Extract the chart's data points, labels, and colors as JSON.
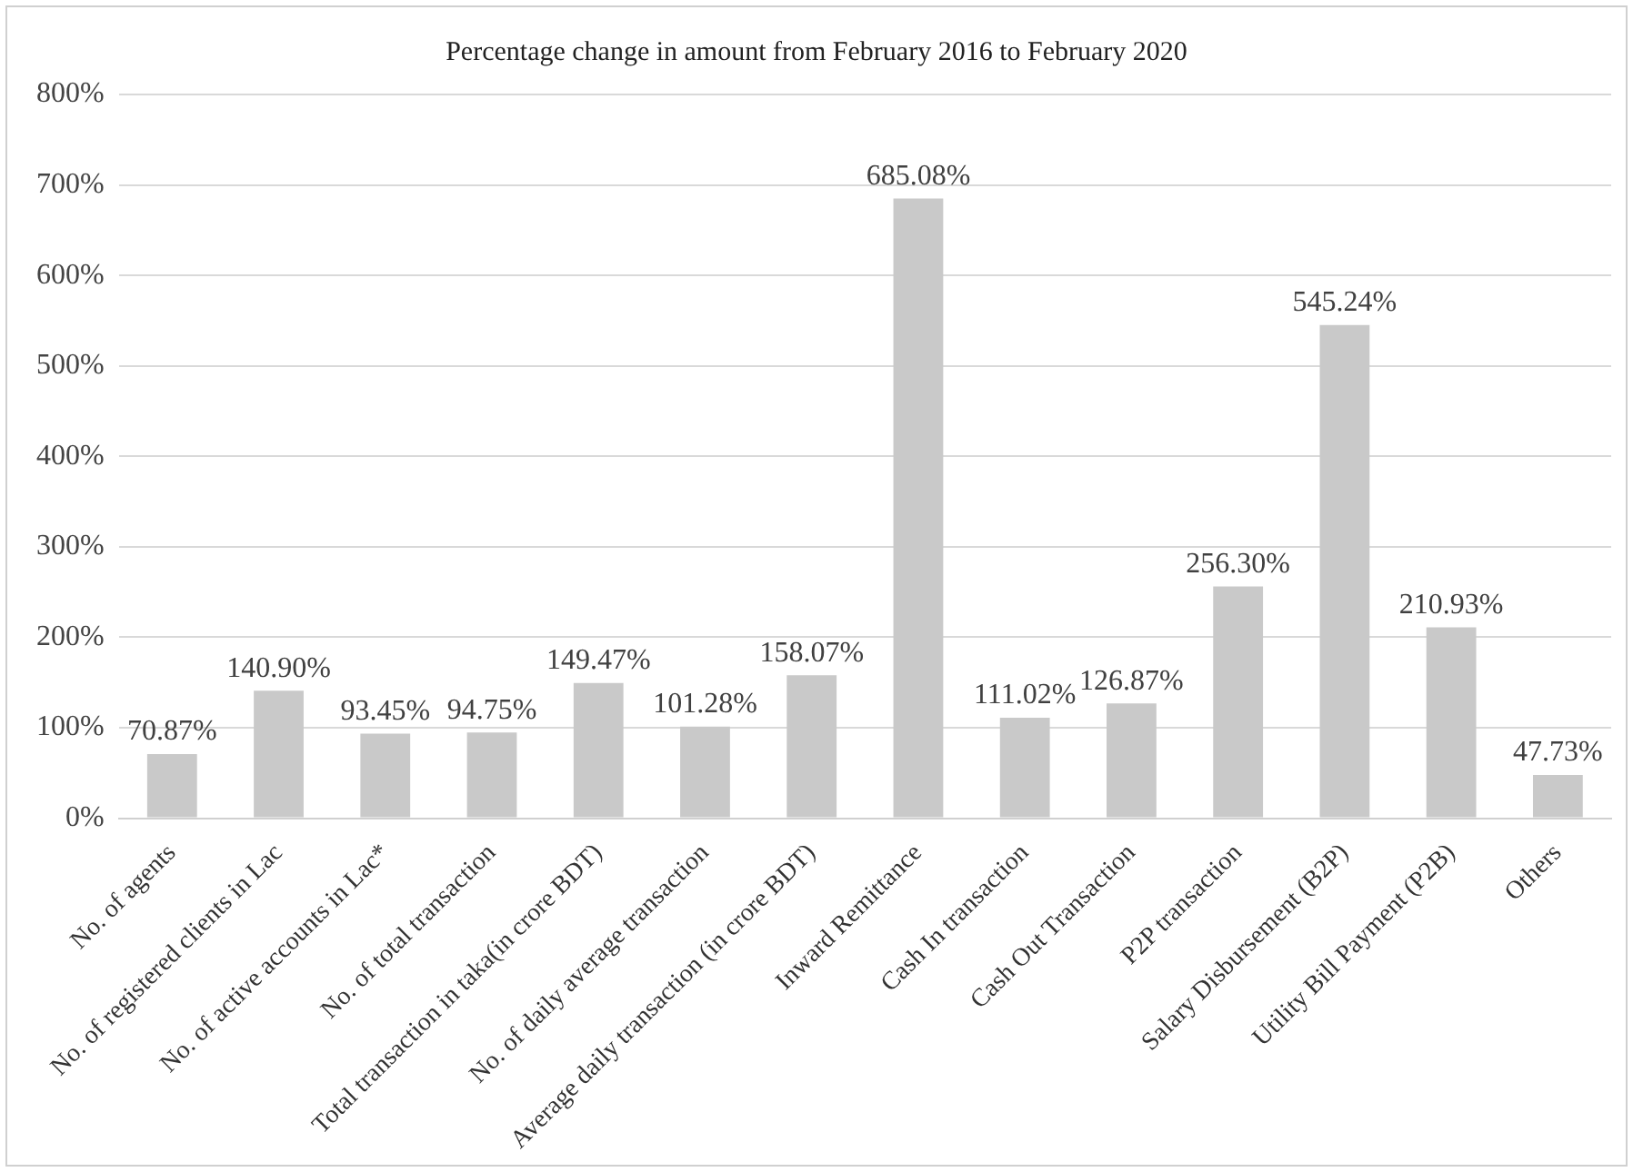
{
  "chart_data": {
    "type": "bar",
    "title": "Percentage change in amount from February 2016 to February 2020",
    "categories": [
      "No. of agents",
      "No. of registered clients in Lac",
      "No. of active accounts in Lac*",
      "No. of total transaction",
      "Total transaction in taka(in crore BDT)",
      "No. of daily average transaction",
      "Average daily transaction (in crore BDT)",
      "Inward Remittance",
      "Cash In transaction",
      "Cash Out Transaction",
      "P2P transaction",
      "Salary Disbursement (B2P)",
      "Utility Bill Payment (P2B)",
      "Others"
    ],
    "values": [
      70.87,
      140.9,
      93.45,
      94.75,
      149.47,
      101.28,
      158.07,
      685.08,
      111.02,
      126.87,
      256.3,
      545.24,
      210.93,
      47.73
    ],
    "value_labels": [
      "70.87%",
      "140.90%",
      "93.45%",
      "94.75%",
      "149.47%",
      "101.28%",
      "158.07%",
      "685.08%",
      "111.02%",
      "126.87%",
      "256.30%",
      "545.24%",
      "210.93%",
      "47.73%"
    ],
    "color": "#c9c9c9",
    "ylim": [
      0,
      800
    ],
    "yticks": [
      {
        "value": 0,
        "label": "0%"
      },
      {
        "value": 100,
        "label": "100%"
      },
      {
        "value": 200,
        "label": "200%"
      },
      {
        "value": 300,
        "label": "300%"
      },
      {
        "value": 400,
        "label": "400%"
      },
      {
        "value": 500,
        "label": "500%"
      },
      {
        "value": 600,
        "label": "600%"
      },
      {
        "value": 700,
        "label": "700%"
      },
      {
        "value": 800,
        "label": "800%"
      }
    ],
    "grid": "y",
    "legend": false
  }
}
